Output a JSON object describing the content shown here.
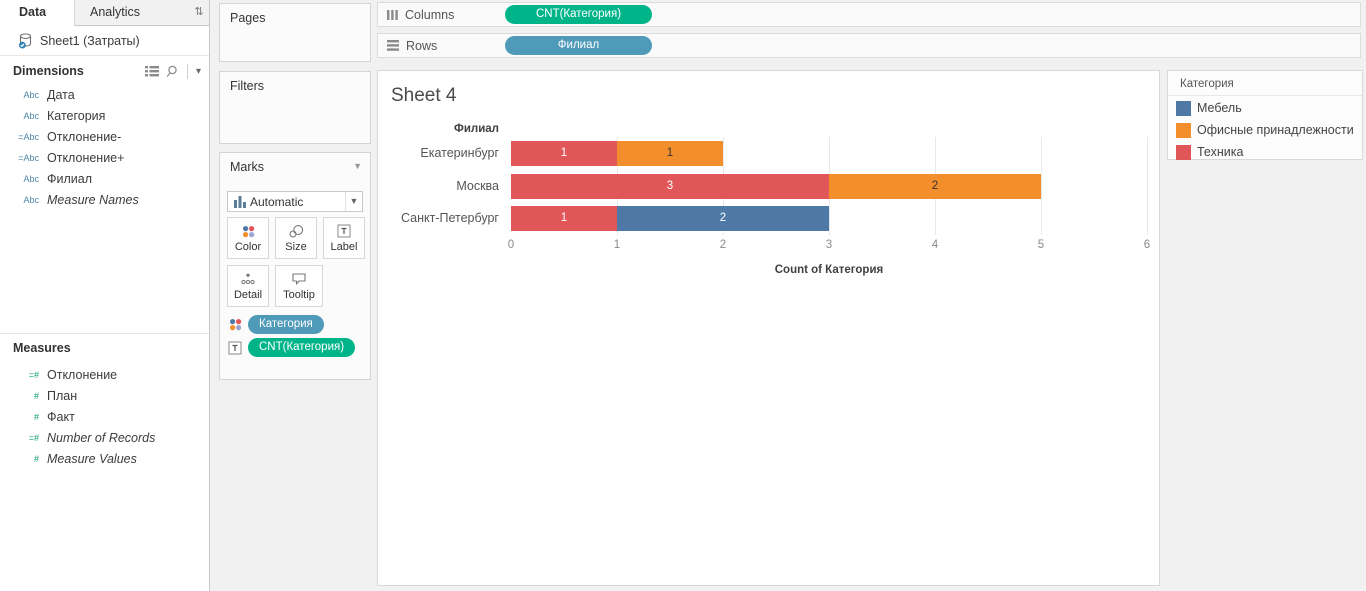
{
  "data_pane": {
    "tabs": [
      {
        "label": "Data"
      },
      {
        "label": "Analytics"
      }
    ],
    "pane_switch_icon": "swap-vertical-icon",
    "datasource": {
      "icon": "database-icon",
      "label": "Sheet1 (Затраты)"
    },
    "dimensions": {
      "header": "Dimensions",
      "header_icons": [
        "view-as-list-icon",
        "search-icon",
        "caret-down-icon"
      ],
      "items": [
        {
          "icon": "Abc",
          "label": "Дата",
          "calc": false,
          "italic": false
        },
        {
          "icon": "Abc",
          "label": "Категория",
          "calc": false,
          "italic": false
        },
        {
          "icon": "=Abc",
          "label": "Отклонение-",
          "calc": true,
          "italic": false
        },
        {
          "icon": "=Abc",
          "label": "Отклонение+",
          "calc": true,
          "italic": false
        },
        {
          "icon": "Abc",
          "label": "Филиал",
          "calc": false,
          "italic": false
        },
        {
          "icon": "Abc",
          "label": "Measure Names",
          "calc": false,
          "italic": true
        }
      ]
    },
    "measures": {
      "header": "Measures",
      "items": [
        {
          "icon": "=#",
          "label": "Отклонение",
          "calc": true,
          "italic": false
        },
        {
          "icon": "#",
          "label": "План",
          "calc": false,
          "italic": false
        },
        {
          "icon": "#",
          "label": "Факт",
          "calc": false,
          "italic": false
        },
        {
          "icon": "=#",
          "label": "Number of Records",
          "calc": true,
          "italic": true
        },
        {
          "icon": "#",
          "label": "Measure Values",
          "calc": false,
          "italic": true
        }
      ]
    }
  },
  "cards": {
    "pages": {
      "label": "Pages"
    },
    "filters": {
      "label": "Filters"
    },
    "marks": {
      "label": "Marks",
      "mark_type": {
        "label": "Automatic",
        "icon": "bar-chart-icon"
      },
      "buttons": [
        {
          "label": "Color",
          "icon": "color-icon"
        },
        {
          "label": "Size",
          "icon": "size-icon"
        },
        {
          "label": "Label",
          "icon": "label-icon"
        },
        {
          "label": "Detail",
          "icon": "detail-icon"
        },
        {
          "label": "Tooltip",
          "icon": "tooltip-icon"
        }
      ],
      "pills": [
        {
          "label": "Категория",
          "color": "#4e9ab8",
          "icon": "color-icon"
        },
        {
          "label": "CNT(Категория)",
          "color": "#00b48a",
          "icon": "text-icon"
        }
      ]
    }
  },
  "shelves": {
    "columns": {
      "label": "Columns",
      "icon": "columns-icon",
      "pills": [
        {
          "label": "CNT(Категория)",
          "color": "#00b48a"
        }
      ]
    },
    "rows": {
      "label": "Rows",
      "icon": "rows-icon",
      "pills": [
        {
          "label": "Филиал",
          "color": "#4e9ab8"
        }
      ]
    }
  },
  "worksheet": {
    "title": "Sheet 4"
  },
  "legend": {
    "title": "Категория",
    "items": [
      {
        "label": "Мебель",
        "color": "#4e79a7"
      },
      {
        "label": "Офисные принадлежности",
        "color": "#f28e2b"
      },
      {
        "label": "Техника",
        "color": "#e15759"
      }
    ]
  },
  "chart_data": {
    "type": "bar",
    "orientation": "horizontal",
    "stacked": true,
    "title": "Sheet 4",
    "categories": [
      "Екатеринбург",
      "Москва",
      "Санкт-Петербург"
    ],
    "series": [
      {
        "name": "Техника",
        "color": "#e15759",
        "label_color": "#ffffff",
        "values": [
          1,
          3,
          1
        ]
      },
      {
        "name": "Офисные принадлежности",
        "color": "#f28e2b",
        "label_color": "#333333",
        "values": [
          1,
          2,
          0
        ]
      },
      {
        "name": "Мебель",
        "color": "#4e79a7",
        "label_color": "#ffffff",
        "values": [
          0,
          0,
          2
        ]
      }
    ],
    "bar_labels_shown": true,
    "x_ticks": [
      0,
      1,
      2,
      3,
      4,
      5,
      6
    ],
    "xlim": [
      0,
      6
    ],
    "xlabel": "Count of Категория",
    "ylabel": "Филиал",
    "grid": "vertical",
    "legend_position": "right"
  }
}
